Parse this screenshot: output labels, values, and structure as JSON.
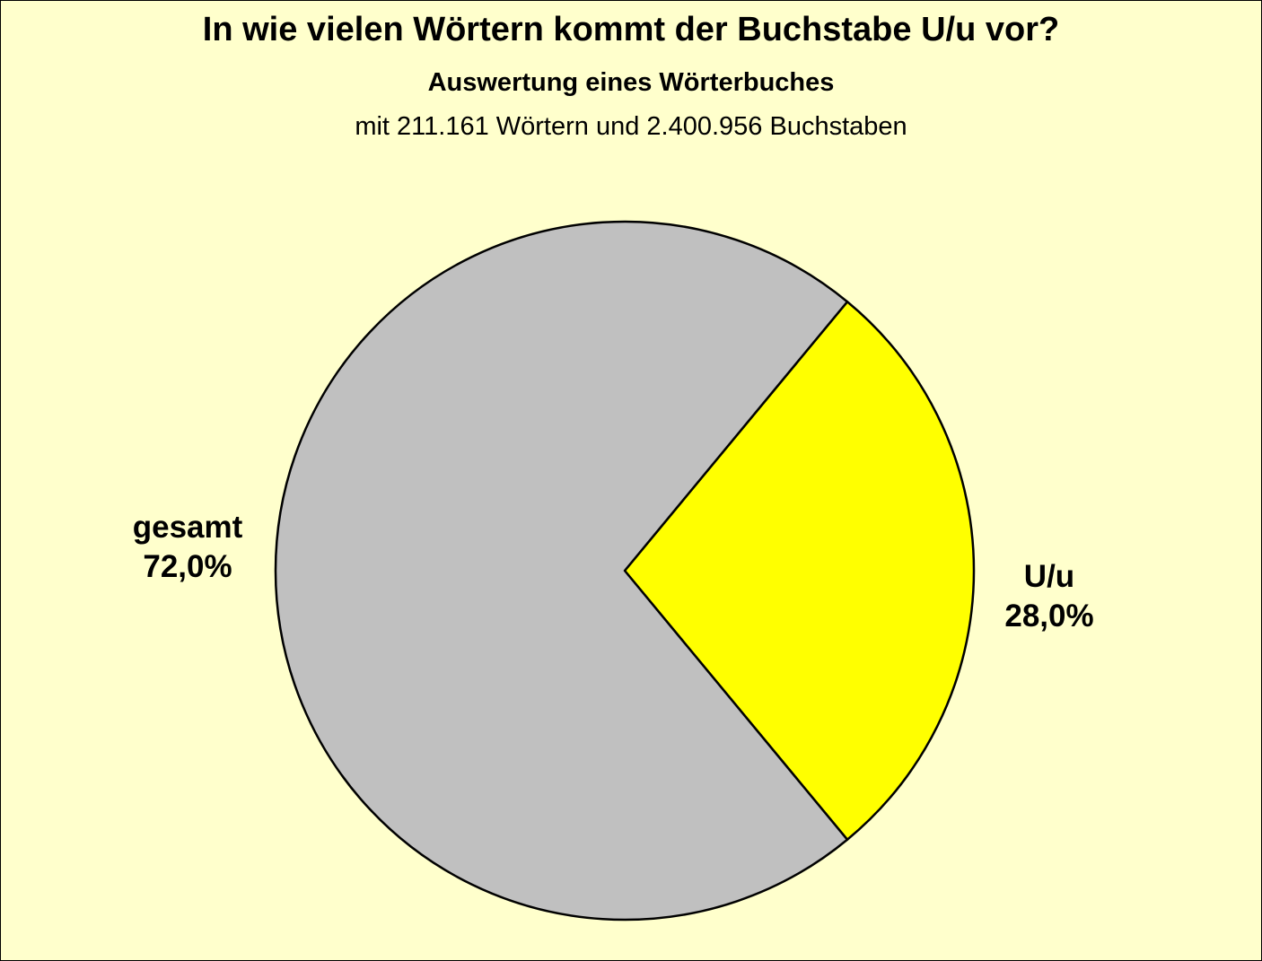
{
  "chart_data": {
    "type": "pie",
    "title": "In wie vielen Wörtern kommt der Buchstabe U/u vor?",
    "subtitle": "Auswertung eines Wörterbuches",
    "subtitle2": "mit 211.161 Wörtern und 2.400.956 Buchstaben",
    "slices": [
      {
        "label": "U/u",
        "value": 28.0,
        "value_label": "28,0%",
        "color": "#ffff00"
      },
      {
        "label": "gesamt",
        "value": 72.0,
        "value_label": "72,0%",
        "color": "#c0c0c0"
      }
    ],
    "background": "#ffffcc",
    "legend": "none"
  }
}
